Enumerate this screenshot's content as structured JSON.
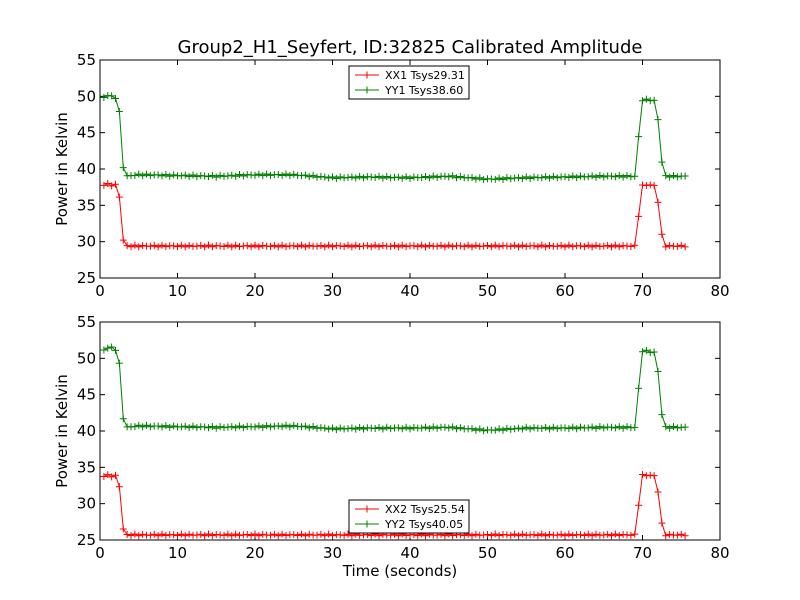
{
  "title": "Group2_H1_Seyfert, ID:32825 Calibrated Amplitude",
  "chart_data": [
    {
      "type": "line",
      "xlim": [
        0,
        80
      ],
      "ylim": [
        25,
        55
      ],
      "xticks": [
        0,
        10,
        20,
        30,
        40,
        50,
        60,
        70,
        80
      ],
      "yticks": [
        25,
        30,
        35,
        40,
        45,
        50,
        55
      ],
      "xlabel": "",
      "ylabel": "Power in Kelvin",
      "legend_position": "top-center",
      "grid": false,
      "series": [
        {
          "name": "XX1 Tsys29.31",
          "color": "#ff0000",
          "x": [
            0.5,
            1.0,
            1.5,
            2.0,
            2.5,
            3.0,
            3.5,
            4.0,
            5.0,
            10.0,
            20.0,
            30.0,
            40.0,
            50.0,
            60.0,
            65.0,
            69.0,
            69.5,
            70.0,
            70.5,
            71.0,
            71.5,
            72.0,
            72.5,
            73.0,
            74.0,
            75.0,
            75.5
          ],
          "y": [
            37.8,
            37.9,
            37.8,
            37.8,
            36.2,
            30.2,
            29.4,
            29.4,
            29.4,
            29.4,
            29.4,
            29.4,
            29.4,
            29.4,
            29.4,
            29.4,
            29.4,
            33.6,
            37.7,
            37.8,
            37.8,
            37.7,
            35.5,
            30.9,
            29.4,
            29.4,
            29.4,
            29.4
          ]
        },
        {
          "name": "YY1 Tsys38.60",
          "color": "#008000",
          "x": [
            0.5,
            1.0,
            1.5,
            2.0,
            2.5,
            3.0,
            3.5,
            4.0,
            5.0,
            10.0,
            15.0,
            20.0,
            25.0,
            30.0,
            35.0,
            40.0,
            45.0,
            50.0,
            55.0,
            60.0,
            65.0,
            69.0,
            69.5,
            70.0,
            70.5,
            71.0,
            71.5,
            72.0,
            72.5,
            73.0,
            74.0,
            75.0,
            75.5
          ],
          "y": [
            49.9,
            50.1,
            50.0,
            49.8,
            47.8,
            40.3,
            39.0,
            39.1,
            39.2,
            39.1,
            39.0,
            39.2,
            39.2,
            38.8,
            38.9,
            38.8,
            39.0,
            38.6,
            38.8,
            38.9,
            39.0,
            39.0,
            44.4,
            49.5,
            49.5,
            49.5,
            49.4,
            46.8,
            41.0,
            39.0,
            39.0,
            39.0,
            39.0
          ]
        }
      ]
    },
    {
      "type": "line",
      "xlim": [
        0,
        80
      ],
      "ylim": [
        25,
        55
      ],
      "xticks": [
        0,
        10,
        20,
        30,
        40,
        50,
        60,
        70,
        80
      ],
      "yticks": [
        25,
        30,
        35,
        40,
        45,
        50,
        55
      ],
      "xlabel": "Time (seconds)",
      "ylabel": "Power in Kelvin",
      "legend_position": "bottom-center",
      "grid": false,
      "series": [
        {
          "name": "XX2 Tsys25.54",
          "color": "#ff0000",
          "x": [
            0.5,
            1.0,
            1.5,
            2.0,
            2.5,
            3.0,
            3.5,
            4.0,
            5.0,
            10.0,
            20.0,
            30.0,
            40.0,
            50.0,
            60.0,
            65.0,
            69.0,
            69.5,
            70.0,
            70.5,
            71.0,
            71.5,
            72.0,
            72.5,
            73.0,
            74.0,
            75.0,
            75.5
          ],
          "y": [
            33.8,
            33.9,
            33.8,
            33.8,
            32.4,
            26.5,
            25.7,
            25.7,
            25.7,
            25.7,
            25.7,
            25.7,
            25.7,
            25.7,
            25.7,
            25.7,
            25.7,
            29.9,
            33.9,
            33.9,
            33.9,
            33.8,
            31.7,
            27.2,
            25.7,
            25.7,
            25.7,
            25.7
          ]
        },
        {
          "name": "YY2 Tsys40.05",
          "color": "#008000",
          "x": [
            0.5,
            1.0,
            1.5,
            2.0,
            2.5,
            3.0,
            3.5,
            4.0,
            5.0,
            10.0,
            15.0,
            20.0,
            25.0,
            30.0,
            35.0,
            40.0,
            45.0,
            50.0,
            55.0,
            60.0,
            65.0,
            69.0,
            69.5,
            70.0,
            70.5,
            71.0,
            71.5,
            72.0,
            72.5,
            73.0,
            74.0,
            75.0,
            75.5
          ],
          "y": [
            51.2,
            51.4,
            51.5,
            51.2,
            49.2,
            41.8,
            40.5,
            40.6,
            40.7,
            40.6,
            40.5,
            40.6,
            40.7,
            40.3,
            40.4,
            40.4,
            40.5,
            40.1,
            40.4,
            40.4,
            40.5,
            40.5,
            45.8,
            51.0,
            51.0,
            50.9,
            50.8,
            48.2,
            42.3,
            40.5,
            40.5,
            40.5,
            40.5
          ]
        }
      ]
    }
  ]
}
